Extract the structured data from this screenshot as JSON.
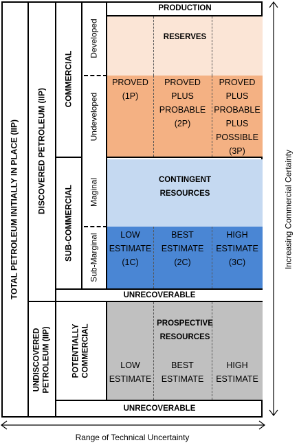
{
  "left_column": {
    "total": "TOTAL PETROLEUM INITIALLY IN PLACE (IIP)",
    "discovered": "DISCOVERED PETROLEUM (IIP)",
    "undiscovered_line1": "UNDISCOVERED",
    "undiscovered_line2": "PETROLEUM (IIP)"
  },
  "classes": {
    "commercial": "COMMERCIAL",
    "sub_commercial": "SUB-COMMERCIAL",
    "potentially_line1": "POTENTIALLY",
    "potentially_line2": "COMMERCIAL"
  },
  "subclasses": {
    "developed": "Developed",
    "undeveloped": "Undeveloped",
    "marginal": "Maginal",
    "sub_marginal": "Sub-Marginal"
  },
  "headers": {
    "production": "PRODUCTION",
    "unrecoverable_discovered": "UNRECOVERABLE",
    "unrecoverable_undiscovered": "UNRECOVERABLE"
  },
  "reserves": {
    "title": "RESERVES",
    "col1": [
      "PROVED",
      "(1P)"
    ],
    "col2": [
      "PROVED",
      "PLUS",
      "PROBABLE",
      "(2P)"
    ],
    "col3": [
      "PROVED",
      "PLUS",
      "PROBABLE",
      "PLUS",
      "POSSIBLE",
      "(3P)"
    ]
  },
  "contingent": {
    "title_line1": "CONTINGENT",
    "title_line2": "RESOURCES",
    "col1": [
      "LOW",
      "ESTIMATE",
      "(1C)"
    ],
    "col2": [
      "BEST",
      "ESTIMATE",
      "(2C)"
    ],
    "col3": [
      "HIGH",
      "ESTIMATE",
      "(3C)"
    ]
  },
  "prospective": {
    "title_line1": "PROSPECTIVE",
    "title_line2": "RESOURCES",
    "col1": [
      "LOW",
      "ESTIMATE"
    ],
    "col2": [
      "BEST",
      "ESTIMATE"
    ],
    "col3": [
      "HIGH",
      "ESTIMATE"
    ]
  },
  "axes": {
    "x_label": "Range of Technical Uncertainty",
    "y_label": "Increasing Commercial Certainty"
  },
  "colors": {
    "reserves_developed": "#fbe5d6",
    "reserves_undeveloped": "#f4b183",
    "contingent_marginal": "#c5d9f1",
    "contingent_submarginal": "#4a86d4",
    "prospective": "#c0c0c0"
  }
}
